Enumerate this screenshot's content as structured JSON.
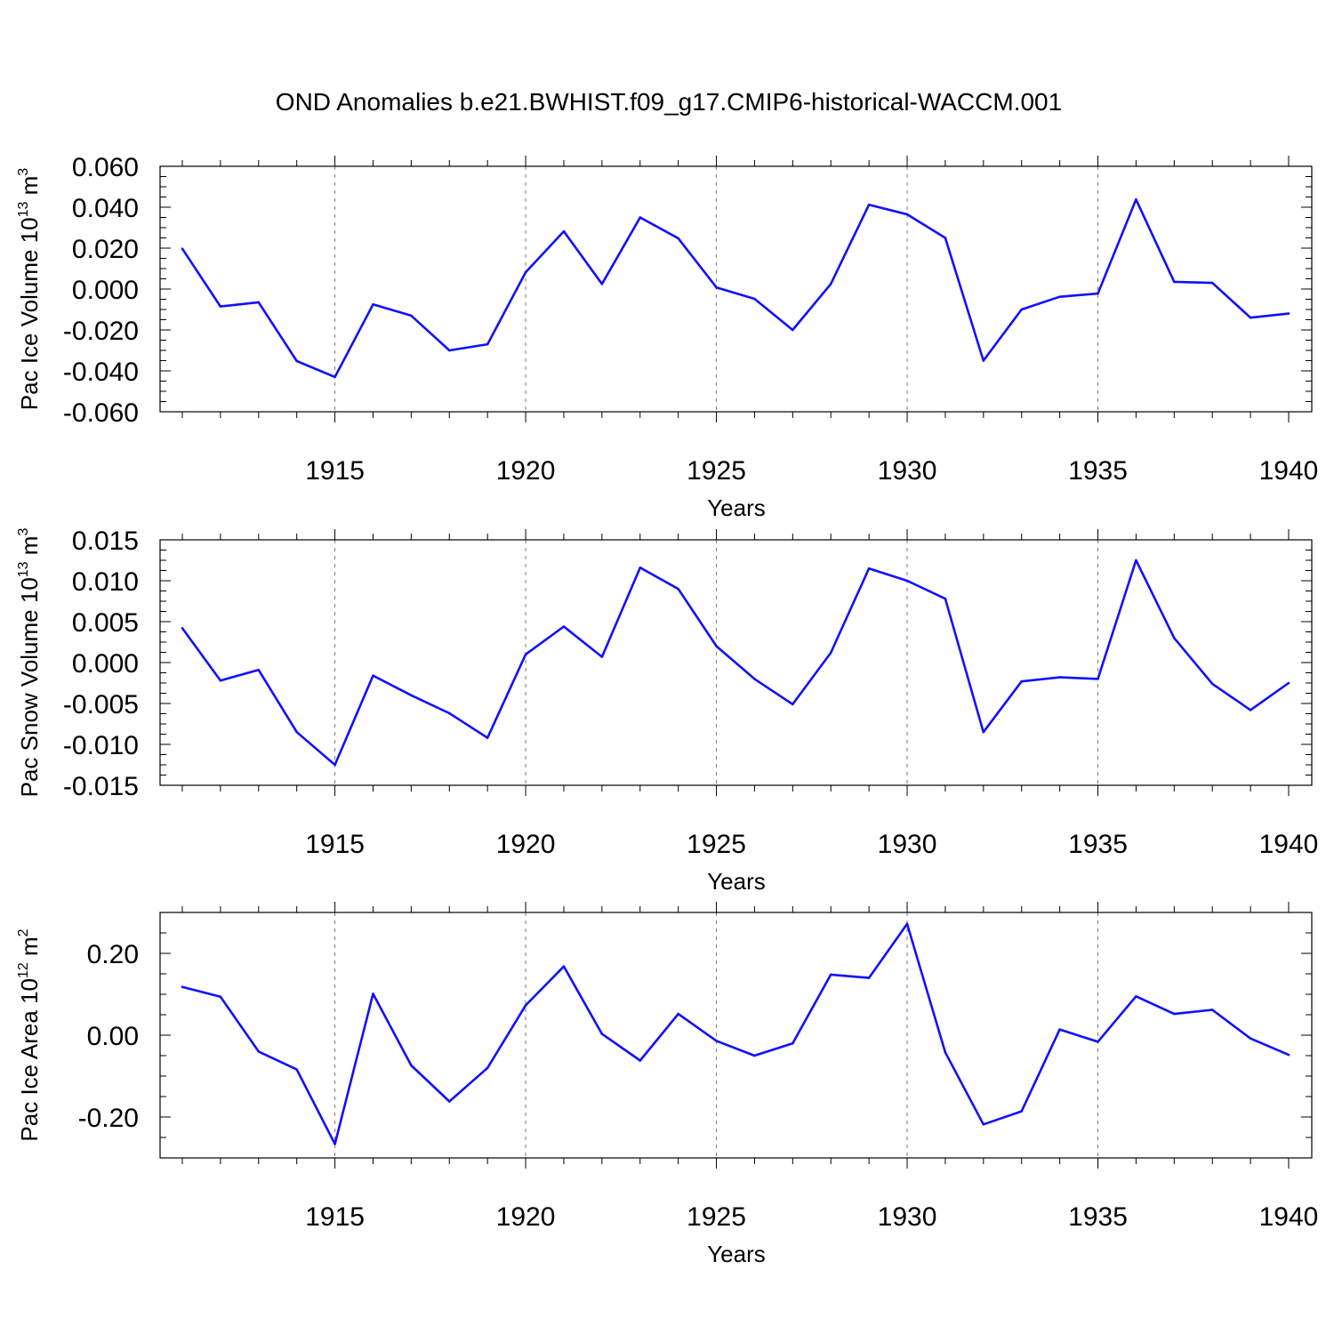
{
  "title": "OND Anomalies b.e21.BWHIST.f09_g17.CMIP6-historical-WACCM.001",
  "colors": {
    "line": "#1010ff",
    "axis": "#000000",
    "grid": "#777777"
  },
  "chart_data": [
    {
      "type": "line",
      "ylabel": {
        "prefix": "Pac Ice Volume 10",
        "exp": "13",
        "unit": " m",
        "unit_exp": "3"
      },
      "xlabel": "Years",
      "xlim": [
        1911,
        1940
      ],
      "ylim": [
        -0.06,
        0.06
      ],
      "x_ticks": [
        "1915",
        "1920",
        "1925",
        "1930",
        "1935",
        "1940"
      ],
      "x_tick_values": [
        1915,
        1920,
        1925,
        1930,
        1935,
        1940
      ],
      "y_ticks": [
        "0.060",
        "0.040",
        "0.020",
        "0.000",
        "-0.020",
        "-0.040",
        "-0.060"
      ],
      "y_tick_values": [
        0.06,
        0.04,
        0.02,
        0.0,
        -0.02,
        -0.04,
        -0.06
      ],
      "y_minor_step": 0.005,
      "x": [
        1911,
        1912,
        1913,
        1914,
        1915,
        1916,
        1917,
        1918,
        1919,
        1920,
        1921,
        1922,
        1923,
        1924,
        1925,
        1926,
        1927,
        1928,
        1929,
        1930,
        1931,
        1932,
        1933,
        1934,
        1935,
        1936,
        1937,
        1938,
        1939,
        1940
      ],
      "values": [
        0.0197,
        -0.0085,
        -0.0065,
        -0.0352,
        -0.043,
        -0.0075,
        -0.013,
        -0.03,
        -0.027,
        0.0082,
        0.0282,
        0.0025,
        0.035,
        0.0248,
        0.0008,
        -0.0048,
        -0.02,
        0.0025,
        0.0412,
        0.0365,
        0.025,
        -0.035,
        -0.01,
        -0.0038,
        -0.0022,
        0.0438,
        0.0035,
        0.003,
        -0.014,
        -0.012
      ]
    },
    {
      "type": "line",
      "ylabel": {
        "prefix": "Pac Snow Volume 10",
        "exp": "13",
        "unit": " m",
        "unit_exp": "3"
      },
      "xlabel": "Years",
      "xlim": [
        1911,
        1940
      ],
      "ylim": [
        -0.015,
        0.015
      ],
      "x_ticks": [
        "1915",
        "1920",
        "1925",
        "1930",
        "1935",
        "1940"
      ],
      "x_tick_values": [
        1915,
        1920,
        1925,
        1930,
        1935,
        1940
      ],
      "y_ticks": [
        "0.015",
        "0.010",
        "0.005",
        "0.000",
        "-0.005",
        "-0.010",
        "-0.015"
      ],
      "y_tick_values": [
        0.015,
        0.01,
        0.005,
        0.0,
        -0.005,
        -0.01,
        -0.015
      ],
      "y_minor_step": 0.00125,
      "x": [
        1911,
        1912,
        1913,
        1914,
        1915,
        1916,
        1917,
        1918,
        1919,
        1920,
        1921,
        1922,
        1923,
        1924,
        1925,
        1926,
        1927,
        1928,
        1929,
        1930,
        1931,
        1932,
        1933,
        1934,
        1935,
        1936,
        1937,
        1938,
        1939,
        1940
      ],
      "values": [
        0.0042,
        -0.0022,
        -0.0009,
        -0.0085,
        -0.0125,
        -0.0016,
        -0.004,
        -0.0062,
        -0.0092,
        0.001,
        0.0044,
        0.0007,
        0.0116,
        0.009,
        0.002,
        -0.002,
        -0.0051,
        0.0012,
        0.0115,
        0.01,
        0.0078,
        -0.0085,
        -0.0023,
        -0.0018,
        -0.002,
        0.0125,
        0.003,
        -0.0026,
        -0.0058,
        -0.0025
      ]
    },
    {
      "type": "line",
      "ylabel": {
        "prefix": "Pac Ice Area 10",
        "exp": "12",
        "unit": " m",
        "unit_exp": "2"
      },
      "xlabel": "Years",
      "xlim": [
        1911,
        1940
      ],
      "ylim": [
        -0.3,
        0.3
      ],
      "x_ticks": [
        "1915",
        "1920",
        "1925",
        "1930",
        "1935",
        "1940"
      ],
      "x_tick_values": [
        1915,
        1920,
        1925,
        1930,
        1935,
        1940
      ],
      "y_ticks": [
        "0.20",
        "0.00",
        "-0.20"
      ],
      "y_tick_values": [
        0.2,
        0.0,
        -0.2
      ],
      "y_minor_step": 0.05,
      "x": [
        1911,
        1912,
        1913,
        1914,
        1915,
        1916,
        1917,
        1918,
        1919,
        1920,
        1921,
        1922,
        1923,
        1924,
        1925,
        1926,
        1927,
        1928,
        1929,
        1930,
        1931,
        1932,
        1933,
        1934,
        1935,
        1936,
        1937,
        1938,
        1939,
        1940
      ],
      "values": [
        0.118,
        0.094,
        -0.04,
        -0.084,
        -0.266,
        0.101,
        -0.074,
        -0.162,
        -0.08,
        0.073,
        0.168,
        0.003,
        -0.062,
        0.052,
        -0.014,
        -0.05,
        -0.02,
        0.148,
        0.14,
        0.272,
        -0.042,
        -0.218,
        -0.186,
        0.014,
        -0.016,
        0.095,
        0.052,
        0.062,
        -0.008,
        -0.048
      ]
    }
  ]
}
